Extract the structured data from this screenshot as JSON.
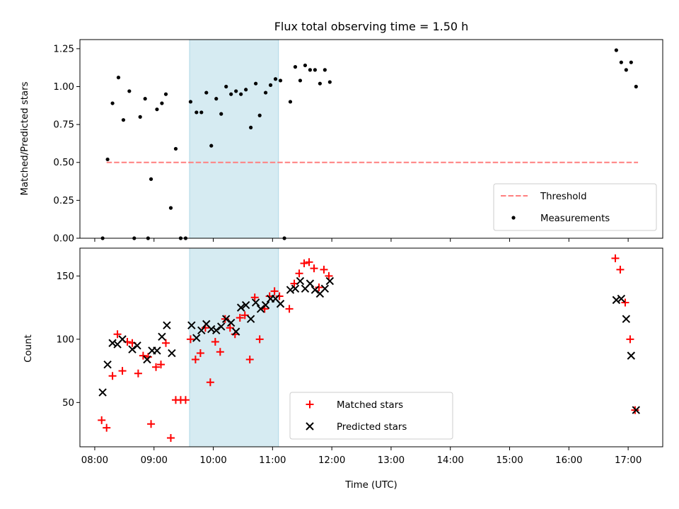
{
  "chart_data": [
    {
      "type": "scatter",
      "title": "Flux total observing time = 1.50 h",
      "xlabel": "",
      "ylabel": "Matched/Predicted stars",
      "xlim": [
        "07:45",
        "17:35"
      ],
      "ylim": [
        0,
        1.31
      ],
      "yticks": [
        "0.00",
        "0.25",
        "0.50",
        "0.75",
        "1.00",
        "1.25"
      ],
      "shaded_interval": [
        "09:36",
        "11:06"
      ],
      "legend_position": "lower right",
      "series": [
        {
          "name": "Threshold",
          "style": "dashed-line",
          "color": "#ff7f7f",
          "points": [
            [
              "08:12",
              0.5
            ],
            [
              "17:10",
              0.5
            ]
          ]
        },
        {
          "name": "Measurements",
          "style": "dot",
          "color": "#000000",
          "points": [
            [
              "08:08",
              0.0
            ],
            [
              "08:13",
              0.52
            ],
            [
              "08:18",
              0.89
            ],
            [
              "08:24",
              1.06
            ],
            [
              "08:29",
              0.78
            ],
            [
              "08:35",
              0.97
            ],
            [
              "08:40",
              0.0
            ],
            [
              "08:46",
              0.8
            ],
            [
              "08:51",
              0.92
            ],
            [
              "08:54",
              0.0
            ],
            [
              "08:57",
              0.39
            ],
            [
              "09:03",
              0.85
            ],
            [
              "09:08",
              0.89
            ],
            [
              "09:12",
              0.95
            ],
            [
              "09:17",
              0.2
            ],
            [
              "09:22",
              0.59
            ],
            [
              "09:27",
              0.0
            ],
            [
              "09:32",
              0.0
            ],
            [
              "09:37",
              0.9
            ],
            [
              "09:43",
              0.83
            ],
            [
              "09:48",
              0.83
            ],
            [
              "09:53",
              0.96
            ],
            [
              "09:58",
              0.61
            ],
            [
              "10:03",
              0.92
            ],
            [
              "10:08",
              0.82
            ],
            [
              "10:13",
              1.0
            ],
            [
              "10:18",
              0.95
            ],
            [
              "10:23",
              0.97
            ],
            [
              "10:28",
              0.95
            ],
            [
              "10:33",
              0.98
            ],
            [
              "10:38",
              0.73
            ],
            [
              "10:43",
              1.02
            ],
            [
              "10:47",
              0.81
            ],
            [
              "10:53",
              0.96
            ],
            [
              "10:58",
              1.01
            ],
            [
              "11:03",
              1.05
            ],
            [
              "11:08",
              1.04
            ],
            [
              "11:12",
              0.0
            ],
            [
              "11:18",
              0.9
            ],
            [
              "11:23",
              1.13
            ],
            [
              "11:28",
              1.04
            ],
            [
              "11:33",
              1.14
            ],
            [
              "11:38",
              1.11
            ],
            [
              "11:43",
              1.11
            ],
            [
              "11:48",
              1.02
            ],
            [
              "11:53",
              1.11
            ],
            [
              "11:58",
              1.03
            ],
            [
              "16:48",
              1.24
            ],
            [
              "16:53",
              1.16
            ],
            [
              "16:58",
              1.11
            ],
            [
              "17:03",
              1.16
            ],
            [
              "17:08",
              1.0
            ]
          ]
        }
      ]
    },
    {
      "type": "scatter",
      "title": "",
      "xlabel": "Time (UTC)",
      "ylabel": "Count",
      "xlim": [
        "07:45",
        "17:35"
      ],
      "ylim": [
        15,
        172
      ],
      "yticks": [
        "50",
        "100",
        "150"
      ],
      "xticks": [
        "08:00",
        "09:00",
        "10:00",
        "11:00",
        "12:00",
        "13:00",
        "14:00",
        "15:00",
        "16:00",
        "17:00"
      ],
      "shaded_interval": [
        "09:36",
        "11:06"
      ],
      "legend_position": "lower center",
      "series": [
        {
          "name": "Matched stars",
          "style": "plus",
          "color": "#ff0000",
          "points": [
            [
              "08:07",
              36
            ],
            [
              "08:12",
              30
            ],
            [
              "08:18",
              71
            ],
            [
              "08:23",
              104
            ],
            [
              "08:28",
              75
            ],
            [
              "08:33",
              98
            ],
            [
              "08:38",
              97
            ],
            [
              "08:44",
              73
            ],
            [
              "08:49",
              87
            ],
            [
              "08:54",
              86
            ],
            [
              "08:57",
              33
            ],
            [
              "09:02",
              78
            ],
            [
              "09:07",
              80
            ],
            [
              "09:12",
              97
            ],
            [
              "09:17",
              22
            ],
            [
              "09:22",
              52
            ],
            [
              "09:27",
              52
            ],
            [
              "09:32",
              52
            ],
            [
              "09:37",
              100
            ],
            [
              "09:42",
              84
            ],
            [
              "09:47",
              89
            ],
            [
              "09:52",
              109
            ],
            [
              "09:57",
              66
            ],
            [
              "10:02",
              98
            ],
            [
              "10:07",
              90
            ],
            [
              "10:12",
              116
            ],
            [
              "10:17",
              109
            ],
            [
              "10:22",
              104
            ],
            [
              "10:27",
              117
            ],
            [
              "10:32",
              119
            ],
            [
              "10:37",
              84
            ],
            [
              "10:42",
              133
            ],
            [
              "10:47",
              100
            ],
            [
              "10:52",
              124
            ],
            [
              "10:57",
              134
            ],
            [
              "11:02",
              138
            ],
            [
              "11:07",
              134
            ],
            [
              "11:17",
              124
            ],
            [
              "11:22",
              144
            ],
            [
              "11:27",
              152
            ],
            [
              "11:32",
              160
            ],
            [
              "11:37",
              161
            ],
            [
              "11:42",
              156
            ],
            [
              "11:47",
              141
            ],
            [
              "11:52",
              155
            ],
            [
              "11:57",
              150
            ],
            [
              "16:47",
              164
            ],
            [
              "16:52",
              155
            ],
            [
              "16:57",
              129
            ],
            [
              "17:02",
              100
            ],
            [
              "17:07",
              44
            ]
          ]
        },
        {
          "name": "Predicted stars",
          "style": "x",
          "color": "#000000",
          "points": [
            [
              "08:08",
              58
            ],
            [
              "08:13",
              80
            ],
            [
              "08:18",
              97
            ],
            [
              "08:23",
              96
            ],
            [
              "08:28",
              100
            ],
            [
              "08:38",
              92
            ],
            [
              "08:43",
              95
            ],
            [
              "08:53",
              84
            ],
            [
              "08:58",
              91
            ],
            [
              "09:03",
              91
            ],
            [
              "09:08",
              102
            ],
            [
              "09:13",
              111
            ],
            [
              "09:18",
              89
            ],
            [
              "09:38",
              111
            ],
            [
              "09:43",
              101
            ],
            [
              "09:48",
              107
            ],
            [
              "09:53",
              112
            ],
            [
              "09:58",
              108
            ],
            [
              "10:03",
              107
            ],
            [
              "10:08",
              110
            ],
            [
              "10:13",
              116
            ],
            [
              "10:18",
              113
            ],
            [
              "10:23",
              106
            ],
            [
              "10:28",
              125
            ],
            [
              "10:33",
              127
            ],
            [
              "10:38",
              116
            ],
            [
              "10:43",
              129
            ],
            [
              "10:48",
              124
            ],
            [
              "10:53",
              127
            ],
            [
              "10:58",
              132
            ],
            [
              "11:03",
              132
            ],
            [
              "11:08",
              128
            ],
            [
              "11:18",
              139
            ],
            [
              "11:23",
              140
            ],
            [
              "11:28",
              146
            ],
            [
              "11:33",
              140
            ],
            [
              "11:38",
              144
            ],
            [
              "11:43",
              139
            ],
            [
              "11:48",
              136
            ],
            [
              "11:53",
              140
            ],
            [
              "11:58",
              146
            ],
            [
              "16:48",
              131
            ],
            [
              "16:53",
              132
            ],
            [
              "16:58",
              116
            ],
            [
              "17:03",
              87
            ],
            [
              "17:08",
              44
            ]
          ]
        }
      ]
    }
  ]
}
